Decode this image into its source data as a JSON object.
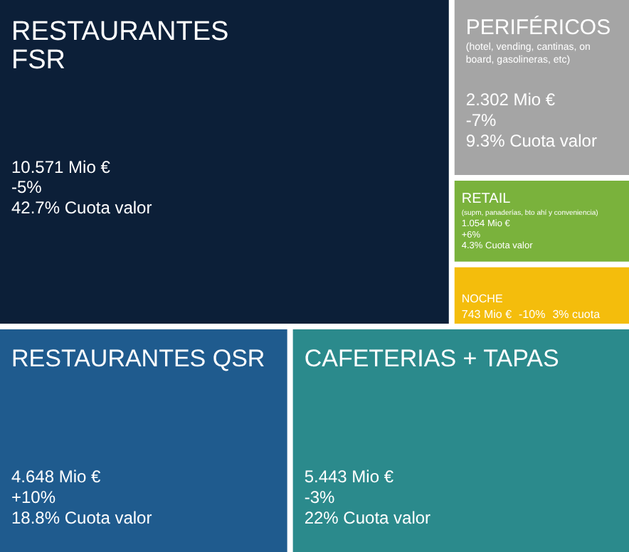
{
  "chart_data": {
    "type": "other",
    "categories": [
      "RESTAURANTES FSR",
      "PERIFÉRICOS",
      "RETAIL",
      "NOCHE",
      "RESTAURANTES QSR",
      "CAFETERIAS + TAPAS"
    ],
    "colors": [
      "#0c1f38",
      "#a5a5a5",
      "#7ab23c",
      "#f4bd0c",
      "#1f5b8e",
      "#2b8a8c"
    ],
    "values": [
      42.7,
      9.3,
      4.3,
      3,
      18.8,
      22
    ],
    "value_labels": [
      "42.7% Cuota valor",
      "9.3% Cuota valor",
      "4.3% Cuota valor",
      "3% cuota",
      "18.8% Cuota valor",
      "22% Cuota valor"
    ],
    "annotations": [
      {
        "text": "10.571 Mio €",
        "x": "RESTAURANTES FSR"
      },
      {
        "text": "-5%",
        "x": "RESTAURANTES FSR"
      },
      {
        "text": "(hotel, vending, cantinas, on board, gasolineras, etc)",
        "x": "PERIFÉRICOS"
      },
      {
        "text": "2.302 Mio €",
        "x": "PERIFÉRICOS"
      },
      {
        "text": "-7%",
        "x": "PERIFÉRICOS"
      },
      {
        "text": "(supm, panaderías, bto ahí y conveniencia)",
        "x": "RETAIL"
      },
      {
        "text": "1.054 Mio €",
        "x": "RETAIL"
      },
      {
        "text": "+6%",
        "x": "RETAIL"
      },
      {
        "text": "743 Mio €",
        "x": "NOCHE"
      },
      {
        "text": "-10%",
        "x": "NOCHE"
      },
      {
        "text": "4.648 Mio €",
        "x": "RESTAURANTES QSR"
      },
      {
        "text": "+10%",
        "x": "RESTAURANTES QSR"
      },
      {
        "text": "5.443 Mio €",
        "x": "CAFETERIAS + TAPAS"
      },
      {
        "text": "-3%",
        "x": "CAFETERIAS + TAPAS"
      }
    ]
  }
}
